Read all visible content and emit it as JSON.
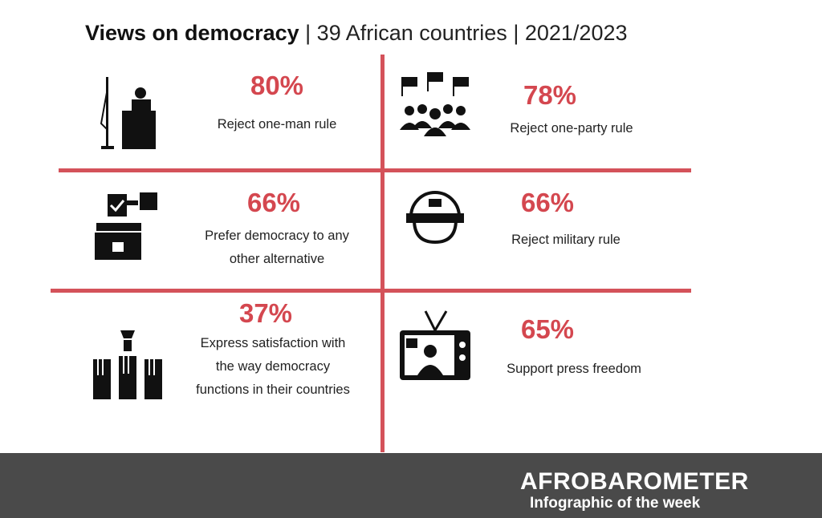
{
  "header": {
    "title_bold": "Views on democracy",
    "separator": "|",
    "subtitle": "39 African countries",
    "years": "2021/2023"
  },
  "stats": [
    {
      "percent": "80%",
      "label": "Reject one-man rule",
      "icon": "podium-icon"
    },
    {
      "percent": "78%",
      "label": "Reject one-party rule",
      "icon": "crowd-flags-icon"
    },
    {
      "percent": "66%",
      "label_1": "Prefer democracy to any",
      "label_2": "other alternative",
      "icon": "ballot-box-icon"
    },
    {
      "percent": "66%",
      "label": "Reject military rule",
      "icon": "military-helmet-icon"
    },
    {
      "percent": "37%",
      "label_1": "Express satisfaction with",
      "label_2": "the way democracy",
      "label_3": "functions in their countries",
      "icon": "raised-hands-icon"
    },
    {
      "percent": "65%",
      "label": "Support press freedom",
      "icon": "television-icon"
    }
  ],
  "footer": {
    "brand": "AFROBAROMETER",
    "tagline": "Infographic of the week"
  },
  "colors": {
    "accent": "#d4474f",
    "footer_bg": "#4a4a4a"
  }
}
